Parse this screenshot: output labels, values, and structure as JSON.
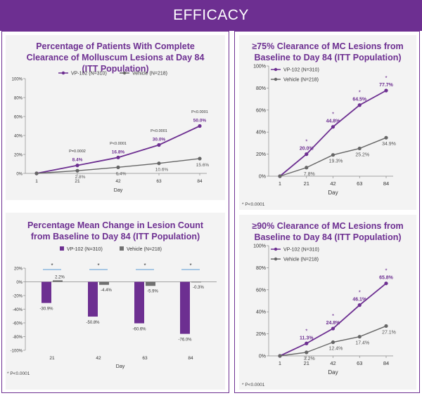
{
  "header": {
    "title": "EFFICACY"
  },
  "colors": {
    "purple": "#6d2f91",
    "gray": "#666666",
    "blue": "#5b9bd5"
  },
  "footnotes": {
    "f3": "* P<0.0001",
    "f2": "* P<0.0001",
    "f4": "* P<0.0001"
  },
  "chart_data": [
    {
      "type": "line",
      "title": "Percentage of Patients With Complete Clearance of Molluscum Lesions at Day 84 (ITT Population)",
      "xlabel": "Day",
      "x": [
        "1",
        "21",
        "42",
        "63",
        "84"
      ],
      "yticks": [
        "0%",
        "20%",
        "40%",
        "60%",
        "80%",
        "100%"
      ],
      "ylim": [
        0,
        100
      ],
      "legend": "top",
      "series": [
        {
          "name": "VP-102 (N=310)",
          "values": [
            0,
            8.4,
            16.8,
            30.0,
            50.0
          ],
          "labels": [
            "",
            "8.4%",
            "16.8%",
            "30.0%",
            "50.0%"
          ]
        },
        {
          "name": "Vehicle (N=218)",
          "values": [
            0,
            2.8,
            6.4,
            10.6,
            15.6
          ],
          "labels": [
            "",
            "2.8%",
            "6.4%",
            "10.6%",
            "15.6%"
          ]
        }
      ],
      "pvalues": [
        "",
        "P=0.0002",
        "P<0.0001",
        "P<0.0001",
        "P<0.0001"
      ]
    },
    {
      "type": "line",
      "title": "≥75% Clearance of MC Lesions from Baseline to Day 84 (ITT Population)",
      "xlabel": "Day",
      "x": [
        "1",
        "21",
        "42",
        "63",
        "84"
      ],
      "yticks": [
        "0%",
        "20%",
        "40%",
        "60%",
        "80%",
        "100%"
      ],
      "ylim": [
        0,
        100
      ],
      "legend": "top-left",
      "series": [
        {
          "name": "VP-102 (N=310)",
          "values": [
            0,
            20.0,
            44.8,
            64.5,
            77.7
          ],
          "labels": [
            "",
            "20.0%",
            "44.8%",
            "64.5%",
            "77.7%"
          ]
        },
        {
          "name": "Vehicle (N=218)",
          "values": [
            0,
            7.8,
            19.3,
            25.2,
            34.9
          ],
          "labels": [
            "",
            "7.8%",
            "19.3%",
            "25.2%",
            "34.9%"
          ]
        }
      ],
      "significance": [
        "",
        "*",
        "*",
        "*",
        "*"
      ]
    },
    {
      "type": "bar",
      "title": "Percentage Mean Change in Lesion Count from Baseline to Day 84 (ITT Population)",
      "xlabel": "Day",
      "categories": [
        "21",
        "42",
        "63",
        "84"
      ],
      "yticks": [
        "-100%",
        "-80%",
        "-60%",
        "-40%",
        "-20%",
        "0%",
        "20%"
      ],
      "ylim": [
        -100,
        20
      ],
      "legend": "top",
      "series": [
        {
          "name": "VP-102 (N=310)",
          "values": [
            -30.9,
            -50.8,
            -60.6,
            -76.0
          ],
          "labels": [
            "-30.9%",
            "-50.8%",
            "-60.6%",
            "-76.0%"
          ]
        },
        {
          "name": "Vehicle (N=218)",
          "values": [
            2.2,
            -4.4,
            -5.9,
            -0.3
          ],
          "labels": [
            "2.2%",
            "-4.4%",
            "-5.9%",
            "-0.3%"
          ]
        }
      ],
      "significance": [
        "*",
        "*",
        "*",
        "*"
      ]
    },
    {
      "type": "line",
      "title": "≥90% Clearance of MC Lesions from Baseline to Day 84 (ITT Population)",
      "xlabel": "Day",
      "x": [
        "1",
        "21",
        "42",
        "63",
        "84"
      ],
      "yticks": [
        "0%",
        "20%",
        "40%",
        "60%",
        "80%",
        "100%"
      ],
      "ylim": [
        0,
        100
      ],
      "legend": "top-left",
      "series": [
        {
          "name": "VP-102 (N=310)",
          "values": [
            0,
            11.3,
            24.8,
            46.1,
            65.8
          ],
          "labels": [
            "",
            "11.3%",
            "24.8%",
            "46.1%",
            "65.8%"
          ]
        },
        {
          "name": "Vehicle (N=218)",
          "values": [
            0,
            3.2,
            12.4,
            17.4,
            27.1
          ],
          "labels": [
            "",
            "3.2%",
            "12.4%",
            "17.4%",
            "27.1%"
          ]
        }
      ],
      "significance": [
        "",
        "*",
        "*",
        "*",
        "*"
      ]
    }
  ]
}
